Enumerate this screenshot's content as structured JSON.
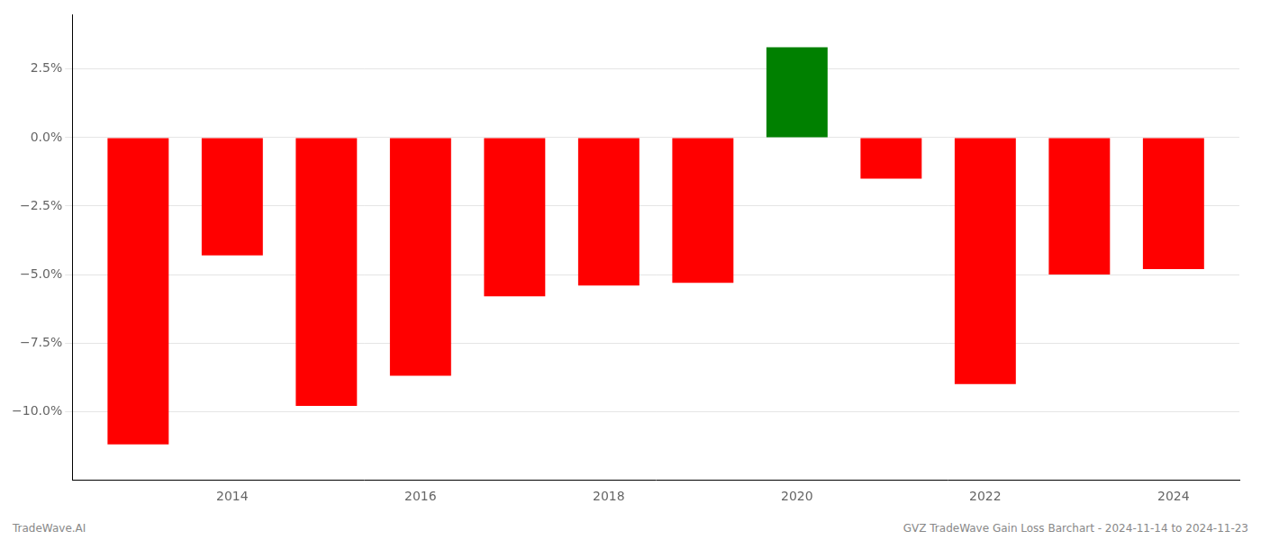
{
  "chart_data": {
    "type": "bar",
    "x": [
      2013,
      2014,
      2015,
      2016,
      2017,
      2018,
      2019,
      2020,
      2021,
      2022,
      2023,
      2024
    ],
    "values": [
      -11.2,
      -4.3,
      -9.8,
      -8.7,
      -5.8,
      -5.4,
      -5.3,
      3.3,
      -1.5,
      -9.0,
      -5.0,
      -4.8
    ],
    "colors": [
      "#ff0000",
      "#ff0000",
      "#ff0000",
      "#ff0000",
      "#ff0000",
      "#ff0000",
      "#ff0000",
      "#008000",
      "#ff0000",
      "#ff0000",
      "#ff0000",
      "#ff0000"
    ],
    "xlim": [
      2012.3,
      2024.7
    ],
    "xticks": [
      2014,
      2016,
      2018,
      2020,
      2022,
      2024
    ],
    "ylim": [
      -12.5,
      4.5
    ],
    "yticks": [
      {
        "value": -10.0,
        "label": "−10.0%"
      },
      {
        "value": -7.5,
        "label": "−7.5%"
      },
      {
        "value": -5.0,
        "label": "−5.0%"
      },
      {
        "value": -2.5,
        "label": "−2.5%"
      },
      {
        "value": 0.0,
        "label": "0.0%"
      },
      {
        "value": 2.5,
        "label": "2.5%"
      }
    ],
    "grid": true,
    "annotations": [
      "TradeWave.AI",
      "GVZ TradeWave Gain Loss Barchart - 2024-11-14 to 2024-11-23"
    ]
  }
}
